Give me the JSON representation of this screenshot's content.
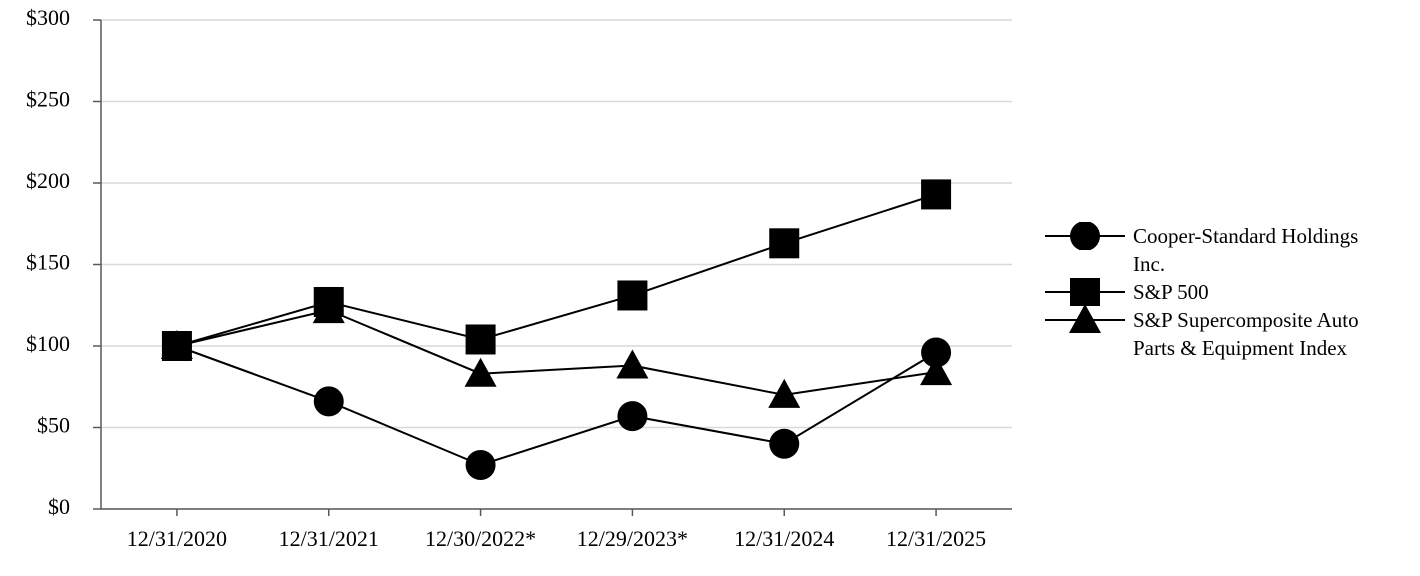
{
  "chart_data": {
    "type": "line",
    "categories": [
      "12/31/2020",
      "12/31/2021",
      "12/30/2022*",
      "12/29/2023*",
      "12/31/2024",
      "12/31/2025"
    ],
    "series": [
      {
        "name": "Cooper-Standard Holdings Inc.",
        "color": "#000000",
        "marker": "circle",
        "values": [
          100,
          66,
          27,
          57,
          40,
          96
        ]
      },
      {
        "name": "S&P 500",
        "color": "#000000",
        "marker": "square",
        "values": [
          100,
          127,
          104,
          131,
          163,
          193
        ]
      },
      {
        "name": "S&P Supercomposite Auto Parts & Equipment Index",
        "color": "#000000",
        "marker": "triangle",
        "values": [
          100,
          122,
          83,
          88,
          70,
          84
        ]
      }
    ],
    "ylim": [
      0,
      300
    ],
    "yticks": [
      {
        "value": 0,
        "label": "$0"
      },
      {
        "value": 50,
        "label": "$50"
      },
      {
        "value": 100,
        "label": "$100"
      },
      {
        "value": 150,
        "label": "$150"
      },
      {
        "value": 200,
        "label": "$200"
      },
      {
        "value": 250,
        "label": "$250"
      },
      {
        "value": 300,
        "label": "$300"
      }
    ],
    "grid": true,
    "legend": "right"
  }
}
